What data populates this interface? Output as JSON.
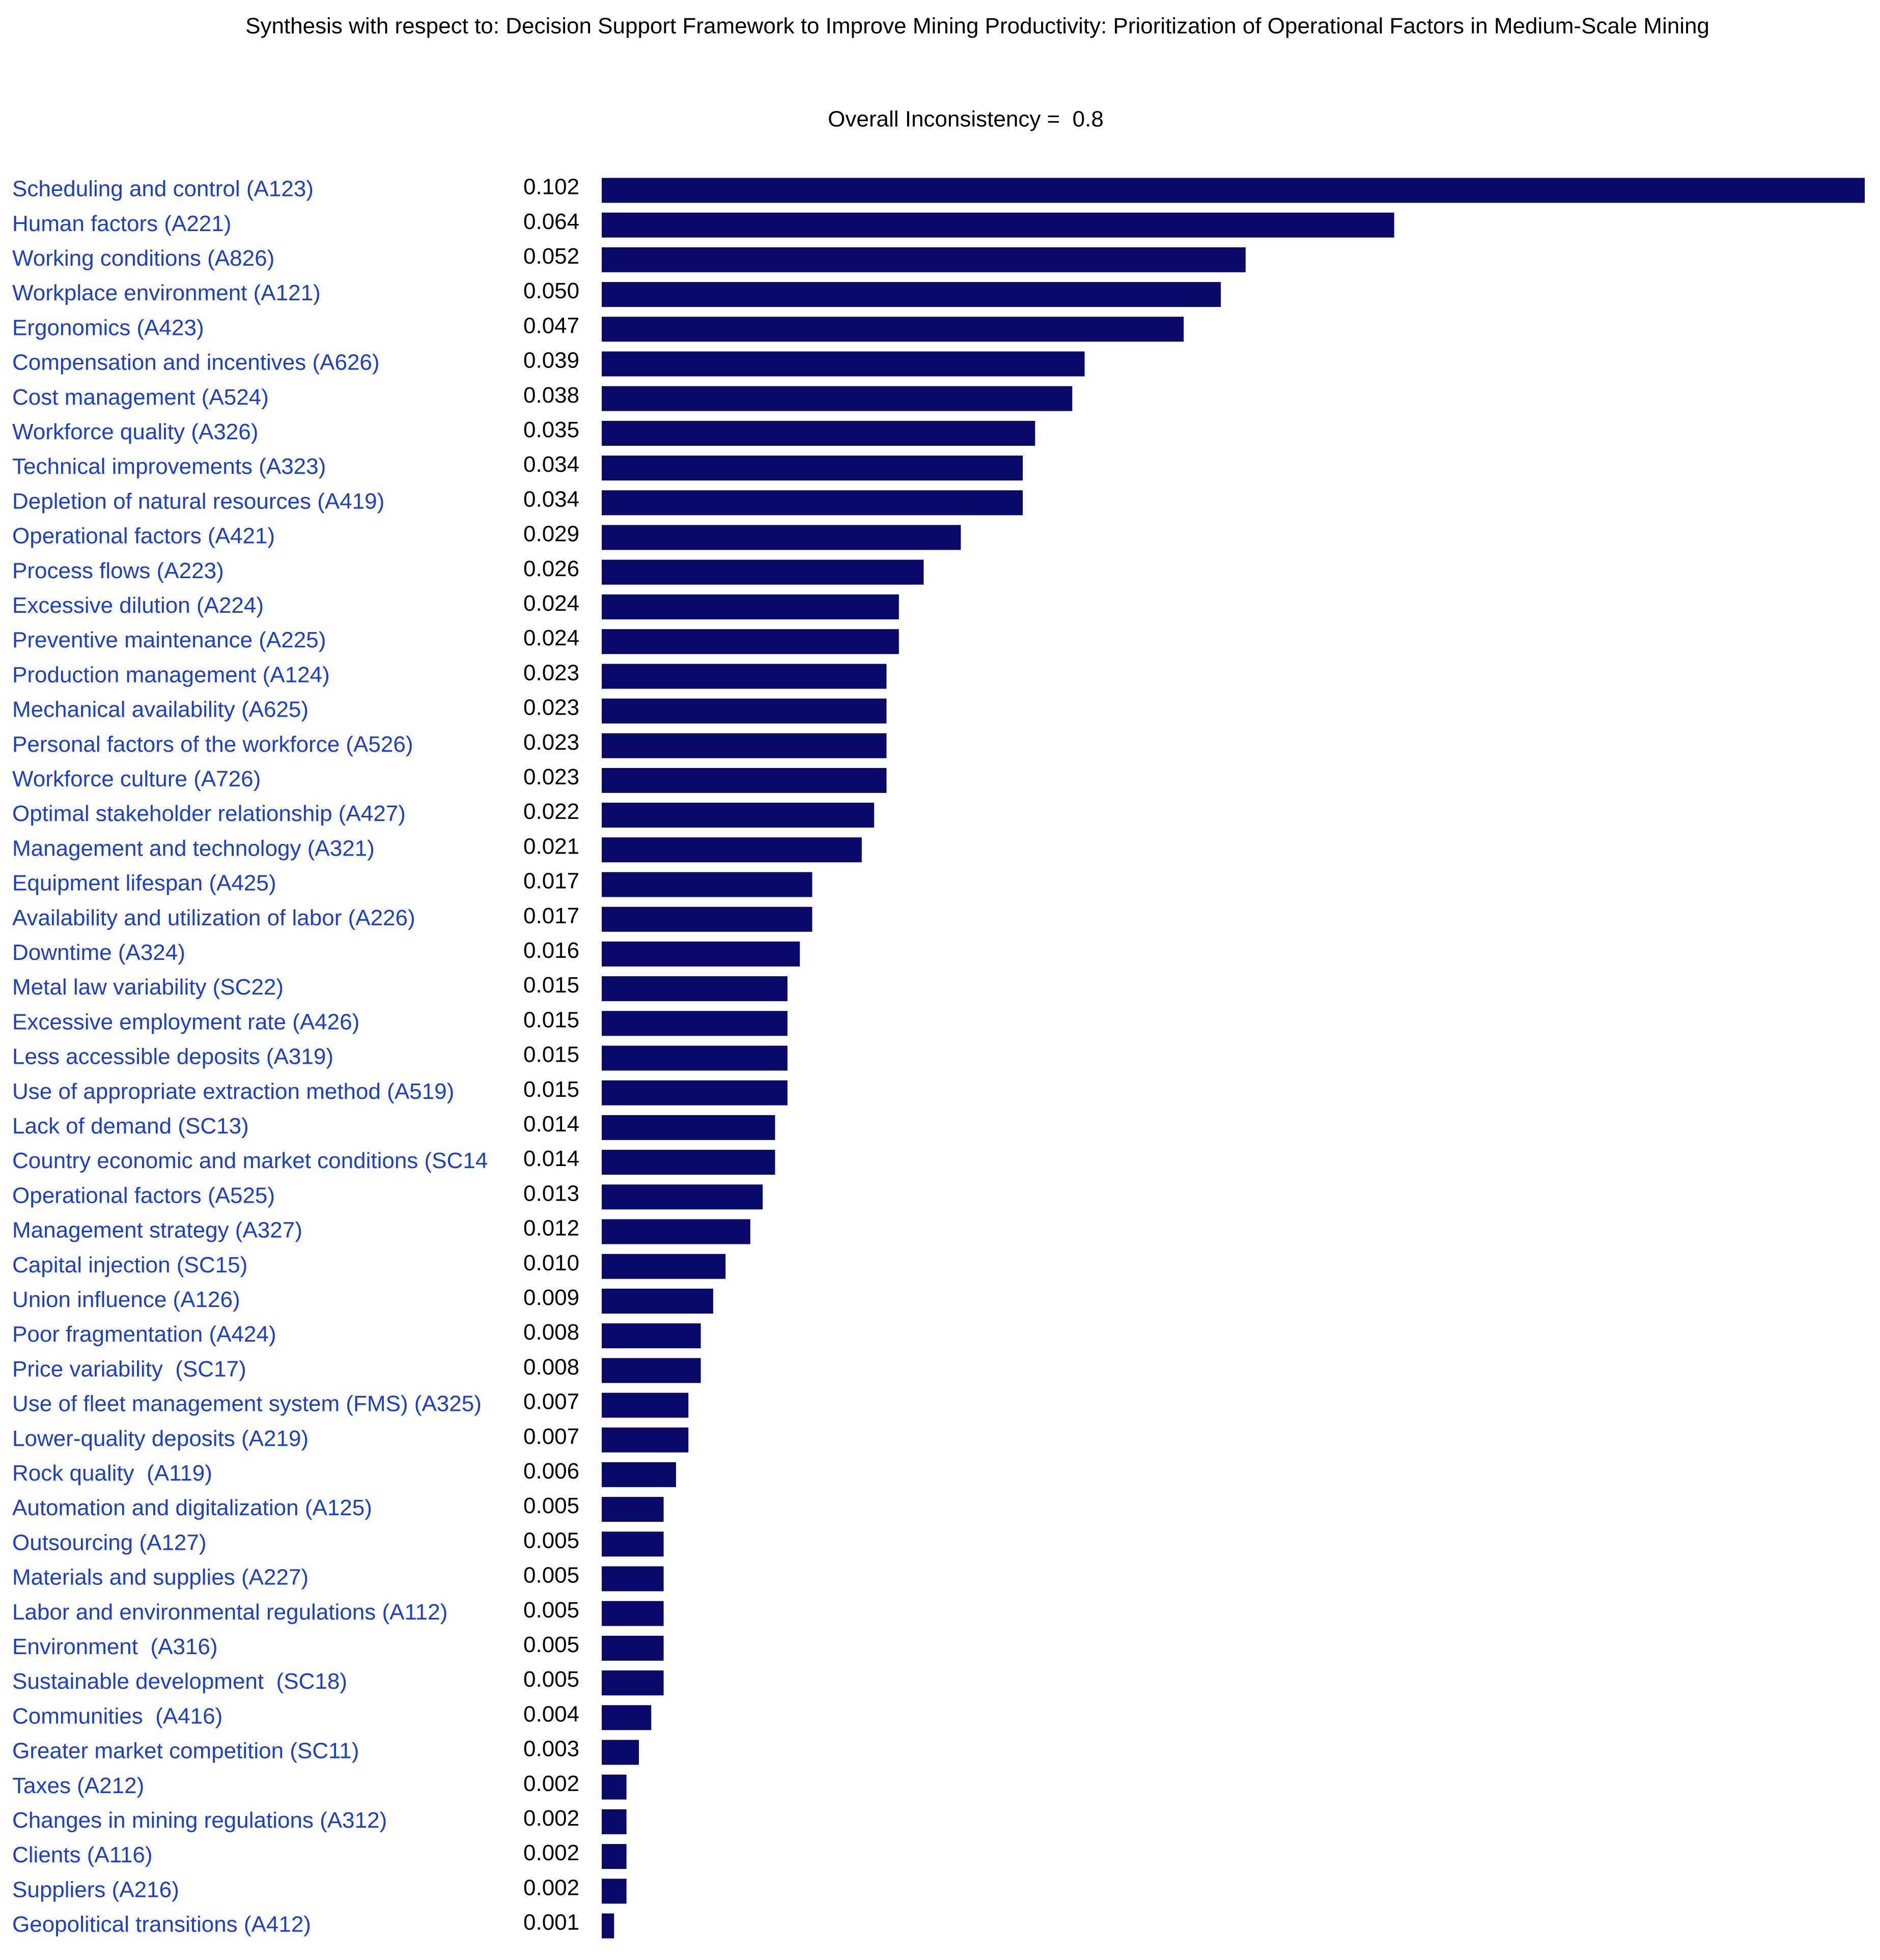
{
  "chart_data": {
    "type": "bar",
    "orientation": "horizontal",
    "title": "Synthesis with respect to: Decision Support Framework to Improve Mining Productivity: Prioritization of Operational Factors in Medium-Scale Mining",
    "subtitle": "Overall Inconsistency =  0.8",
    "color": "#0a0a6b",
    "categories": [
      "Scheduling and control (A123)",
      "Human factors (A221)",
      "Working conditions (A826)",
      "Workplace environment (A121)",
      "Ergonomics (A423)",
      "Compensation and incentives (A626)",
      "Cost management (A524)",
      "Workforce quality (A326)",
      "Technical improvements (A323)",
      "Depletion of natural resources (A419)",
      "Operational factors (A421)",
      "Process flows (A223)",
      "Excessive dilution (A224)",
      "Preventive maintenance (A225)",
      "Production management (A124)",
      "Mechanical availability (A625)",
      "Personal factors of the workforce (A526)",
      "Workforce culture (A726)",
      "Optimal stakeholder relationship (A427)",
      "Management and technology (A321)",
      "Equipment lifespan (A425)",
      "Availability and utilization of labor (A226)",
      "Downtime (A324)",
      "Metal law variability (SC22)",
      "Excessive employment rate (A426)",
      "Less accessible deposits (A319)",
      "Use of appropriate extraction method (A519)",
      "Lack of demand (SC13)",
      "Country economic and market conditions (SC14",
      "Operational factors (A525)",
      "Management strategy (A327)",
      "Capital injection (SC15)",
      "Union influence (A126)",
      "Poor fragmentation (A424)",
      "Price variability  (SC17)",
      "Use of fleet management system (FMS) (A325)",
      "Lower-quality deposits (A219)",
      "Rock quality  (A119)",
      "Automation and digitalization (A125)",
      "Outsourcing (A127)",
      "Materials and supplies (A227)",
      "Labor and environmental regulations (A112)",
      "Environment  (A316)",
      "Sustainable development  (SC18)",
      "Communities  (A416)",
      "Greater market competition (SC11)",
      "Taxes (A212)",
      "Changes in mining regulations (A312)",
      "Clients (A116)",
      "Suppliers (A216)",
      "Geopolitical transitions (A412)"
    ],
    "values": [
      0.102,
      0.064,
      0.052,
      0.05,
      0.047,
      0.039,
      0.038,
      0.035,
      0.034,
      0.034,
      0.029,
      0.026,
      0.024,
      0.024,
      0.023,
      0.023,
      0.023,
      0.023,
      0.022,
      0.021,
      0.017,
      0.017,
      0.016,
      0.015,
      0.015,
      0.015,
      0.015,
      0.014,
      0.014,
      0.013,
      0.012,
      0.01,
      0.009,
      0.008,
      0.008,
      0.007,
      0.007,
      0.006,
      0.005,
      0.005,
      0.005,
      0.005,
      0.005,
      0.005,
      0.004,
      0.003,
      0.002,
      0.002,
      0.002,
      0.002,
      0.001
    ],
    "value_labels": [
      "0.102",
      "0.064",
      "0.052",
      "0.050",
      "0.047",
      "0.039",
      "0.038",
      "0.035",
      "0.034",
      "0.034",
      "0.029",
      "0.026",
      "0.024",
      "0.024",
      "0.023",
      "0.023",
      "0.023",
      "0.023",
      "0.022",
      "0.021",
      "0.017",
      "0.017",
      "0.016",
      "0.015",
      "0.015",
      "0.015",
      "0.015",
      "0.014",
      "0.014",
      "0.013",
      "0.012",
      "0.010",
      "0.009",
      "0.008",
      "0.008",
      "0.007",
      "0.007",
      "0.006",
      "0.005",
      "0.005",
      "0.005",
      "0.005",
      "0.005",
      "0.005",
      "0.004",
      "0.003",
      "0.002",
      "0.002",
      "0.002",
      "0.002",
      "0.001"
    ]
  }
}
